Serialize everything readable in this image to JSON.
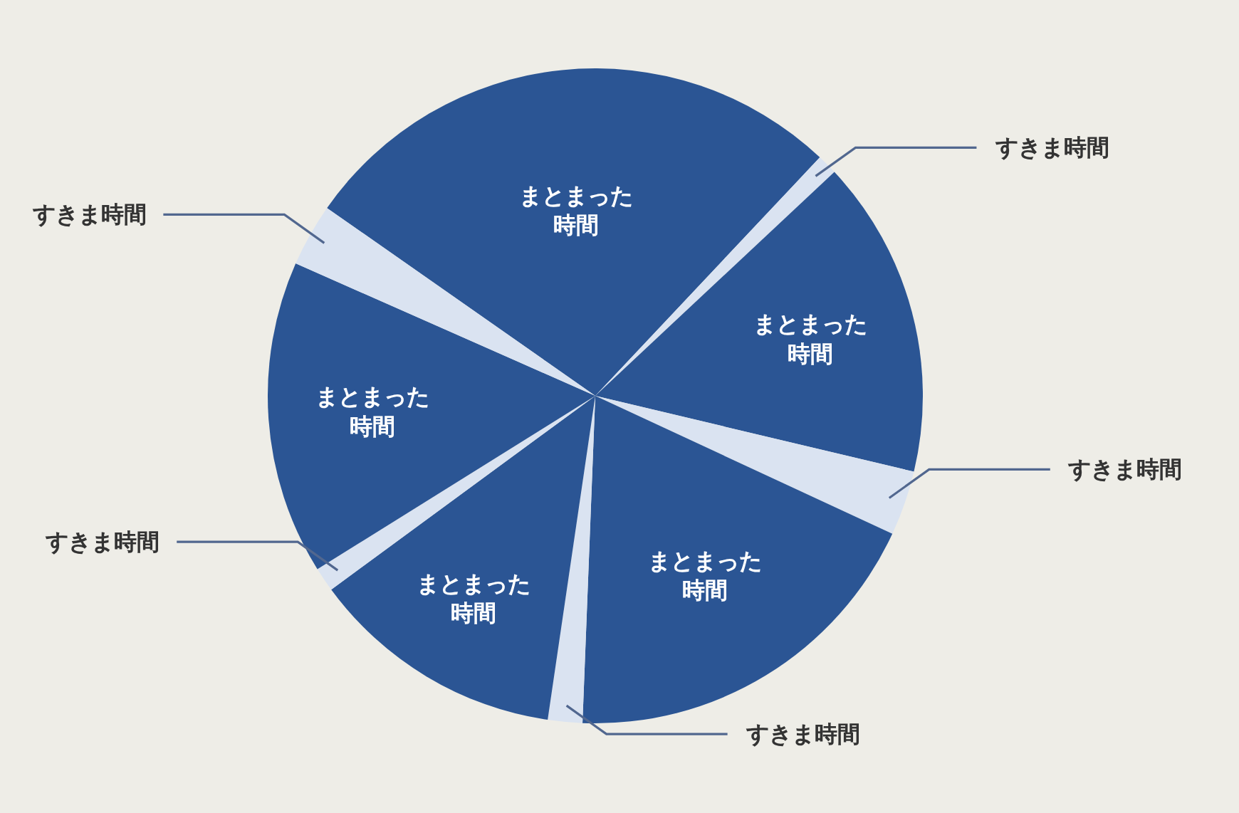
{
  "chart_data": {
    "type": "pie",
    "categories": [
      "まとまった時間",
      "すきま時間",
      "まとまった時間",
      "すきま時間",
      "まとまった時間",
      "すきま時間",
      "まとまった時間",
      "すきま時間",
      "まとまった時間",
      "すきま時間"
    ],
    "values": [
      27.3,
      1.0,
      15.7,
      3.2,
      18.7,
      1.7,
      12.6,
      1.2,
      15.5,
      3.1
    ],
    "colors": [
      "#2b5594",
      "#dae3f1",
      "#2b5594",
      "#dae3f1",
      "#2b5594",
      "#dae3f1",
      "#2b5594",
      "#dae3f1",
      "#2b5594",
      "#dae3f1"
    ],
    "legend": false
  }
}
